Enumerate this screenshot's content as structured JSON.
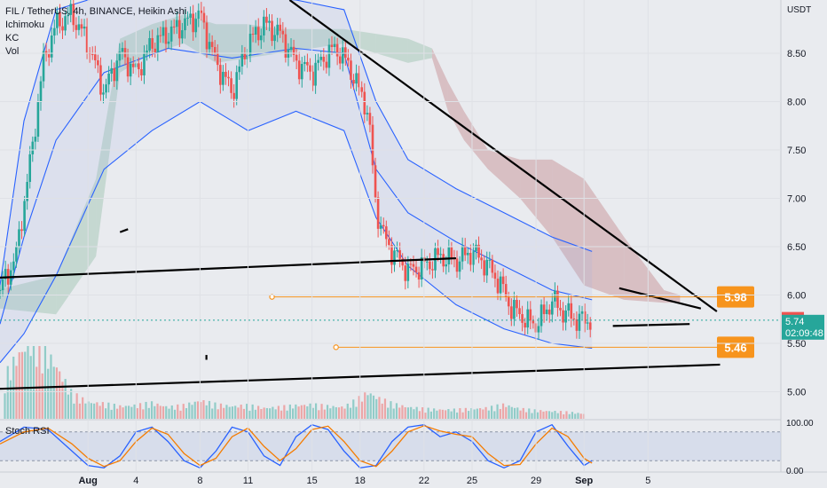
{
  "chart_data": [
    {
      "type": "candlestick",
      "title": "FIL / TetherUS, 4h, BINANCE, Heikin Ashi",
      "indicators": [
        "Ichimoku",
        "KC",
        "Vol"
      ],
      "currency": "USDT",
      "y_ticks": [
        5.0,
        5.5,
        6.0,
        6.5,
        7.0,
        7.5,
        8.0,
        8.5
      ],
      "y_tick_labels": [
        "5.00",
        "5.50",
        "6.00",
        "6.50",
        "7.00",
        "7.50",
        "8.00",
        "8.50"
      ],
      "x_tick_labels": [
        "Aug",
        "4",
        "8",
        "11",
        "15",
        "18",
        "22",
        "25",
        "29",
        "Sep",
        "5"
      ],
      "x_tick_day": [
        1,
        4,
        8,
        11,
        15,
        18,
        22,
        25,
        29,
        32,
        36
      ],
      "ylim": [
        4.72,
        9.05
      ],
      "xlim_day": [
        -4.5,
        44.3
      ],
      "price_path": [
        [
          -4.5,
          6.05
        ],
        [
          -3.5,
          6.4
        ],
        [
          -2.5,
          7.5
        ],
        [
          -1.8,
          8.4
        ],
        [
          -1.0,
          8.8
        ],
        [
          0.0,
          8.9
        ],
        [
          1.0,
          8.6
        ],
        [
          2.0,
          8.1
        ],
        [
          3.0,
          8.5
        ],
        [
          4.0,
          8.3
        ],
        [
          5.0,
          8.6
        ],
        [
          6.0,
          8.7
        ],
        [
          7.0,
          8.8
        ],
        [
          8.0,
          8.9
        ],
        [
          9.0,
          8.4
        ],
        [
          10.0,
          8.1
        ],
        [
          11.0,
          8.6
        ],
        [
          12.0,
          8.8
        ],
        [
          13.0,
          8.7
        ],
        [
          14.0,
          8.4
        ],
        [
          15.0,
          8.3
        ],
        [
          16.0,
          8.5
        ],
        [
          16.5,
          8.55
        ],
        [
          17.0,
          8.45
        ],
        [
          17.5,
          8.3
        ],
        [
          18.0,
          8.1
        ],
        [
          18.5,
          7.9
        ],
        [
          19.0,
          6.9
        ],
        [
          19.5,
          6.6
        ],
        [
          20.0,
          6.45
        ],
        [
          21.0,
          6.25
        ],
        [
          22.0,
          6.3
        ],
        [
          23.0,
          6.4
        ],
        [
          24.0,
          6.35
        ],
        [
          25.0,
          6.45
        ],
        [
          26.0,
          6.3
        ],
        [
          26.8,
          6.1
        ],
        [
          27.5,
          5.85
        ],
        [
          28.0,
          5.8
        ],
        [
          28.5,
          5.72
        ],
        [
          29.0,
          5.7
        ],
        [
          29.5,
          5.8
        ],
        [
          30.0,
          5.95
        ],
        [
          30.5,
          5.85
        ],
        [
          31.0,
          5.8
        ],
        [
          31.5,
          5.75
        ],
        [
          32.0,
          5.73
        ],
        [
          32.5,
          5.76
        ]
      ],
      "volume_day": [
        [
          -4.2,
          5.0
        ],
        [
          -3.6,
          7.0
        ],
        [
          -3.0,
          8.5
        ],
        [
          -2.4,
          9.5
        ],
        [
          -1.8,
          8.0
        ],
        [
          -1.2,
          7.0
        ],
        [
          -0.6,
          5.0
        ],
        [
          0.0,
          3.0
        ],
        [
          1.0,
          2.0
        ],
        [
          2.0,
          1.8
        ],
        [
          3.0,
          1.5
        ],
        [
          4.0,
          1.6
        ],
        [
          5.0,
          1.9
        ],
        [
          6.0,
          1.4
        ],
        [
          7.0,
          1.6
        ],
        [
          8.0,
          2.2
        ],
        [
          9.0,
          1.7
        ],
        [
          10.0,
          1.5
        ],
        [
          11.0,
          1.6
        ],
        [
          12.0,
          1.3
        ],
        [
          13.0,
          1.4
        ],
        [
          14.0,
          1.6
        ],
        [
          15.0,
          1.7
        ],
        [
          16.0,
          1.5
        ],
        [
          17.0,
          1.4
        ],
        [
          18.0,
          2.5
        ],
        [
          18.5,
          3.2
        ],
        [
          19.0,
          2.6
        ],
        [
          20.0,
          1.8
        ],
        [
          21.0,
          1.4
        ],
        [
          22.0,
          1.2
        ],
        [
          23.0,
          1.1
        ],
        [
          24.0,
          1.1
        ],
        [
          25.0,
          1.2
        ],
        [
          26.0,
          1.3
        ],
        [
          27.0,
          1.7
        ],
        [
          28.0,
          1.2
        ],
        [
          29.0,
          1.0
        ],
        [
          30.0,
          0.9
        ],
        [
          31.0,
          0.8
        ],
        [
          32.0,
          0.6
        ]
      ],
      "volume_scale": 10,
      "ichimoku_cloud_day": [
        [
          -4.5,
          5.86,
          6.06
        ],
        [
          -1.0,
          5.8,
          6.2
        ],
        [
          1.5,
          6.4,
          7.2
        ],
        [
          3.0,
          8.3,
          8.65
        ],
        [
          5.0,
          8.5,
          8.8
        ],
        [
          7.0,
          8.6,
          8.9
        ],
        [
          9.0,
          8.4,
          8.8
        ],
        [
          11.0,
          8.45,
          8.8
        ],
        [
          13.0,
          8.5,
          8.75
        ],
        [
          15.0,
          8.55,
          8.75
        ],
        [
          17.0,
          8.6,
          8.75
        ],
        [
          19.0,
          8.5,
          8.7
        ],
        [
          21.0,
          8.4,
          8.65
        ],
        [
          22.5,
          8.45,
          8.55
        ],
        [
          23.5,
          7.9,
          8.2
        ],
        [
          24.5,
          7.6,
          7.9
        ],
        [
          26.0,
          7.3,
          7.5
        ],
        [
          28.0,
          7.0,
          7.4
        ],
        [
          30.0,
          6.6,
          7.4
        ],
        [
          32.0,
          6.1,
          7.2
        ],
        [
          34.5,
          5.95,
          6.6
        ],
        [
          37.0,
          5.92,
          6.05
        ],
        [
          38.0,
          5.92,
          6.0
        ]
      ],
      "kc_upper_day": [
        [
          -4.5,
          6.1
        ],
        [
          -3.0,
          7.8
        ],
        [
          -1.0,
          8.95
        ],
        [
          2.0,
          9.1
        ],
        [
          6.0,
          9.1
        ],
        [
          10.0,
          9.1
        ],
        [
          14.0,
          9.05
        ],
        [
          17.0,
          8.95
        ],
        [
          19.0,
          8.0
        ],
        [
          21.0,
          7.4
        ],
        [
          24.0,
          7.1
        ],
        [
          27.0,
          6.85
        ],
        [
          30.0,
          6.6
        ],
        [
          32.5,
          6.45
        ]
      ],
      "kc_middle_day": [
        [
          -4.5,
          5.7
        ],
        [
          -3.0,
          6.6
        ],
        [
          -1.0,
          7.6
        ],
        [
          2.0,
          8.3
        ],
        [
          6.0,
          8.55
        ],
        [
          10.0,
          8.45
        ],
        [
          14.0,
          8.55
        ],
        [
          17.0,
          8.5
        ],
        [
          19.0,
          7.3
        ],
        [
          21.0,
          6.85
        ],
        [
          24.0,
          6.55
        ],
        [
          27.0,
          6.3
        ],
        [
          30.0,
          6.05
        ],
        [
          32.5,
          5.95
        ]
      ],
      "kc_lower_day": [
        [
          -4.5,
          5.3
        ],
        [
          -3.0,
          5.6
        ],
        [
          -1.0,
          6.2
        ],
        [
          2.0,
          7.3
        ],
        [
          5.0,
          7.7
        ],
        [
          8.0,
          8.0
        ],
        [
          11.0,
          7.7
        ],
        [
          14.0,
          7.9
        ],
        [
          17.0,
          7.7
        ],
        [
          19.0,
          6.8
        ],
        [
          21.0,
          6.3
        ],
        [
          24.0,
          5.9
        ],
        [
          27.0,
          5.65
        ],
        [
          30.0,
          5.5
        ],
        [
          32.5,
          5.45
        ]
      ],
      "trendlines_day": [
        [
          -4.5,
          6.18,
          24.0,
          6.38
        ],
        [
          -4.5,
          5.03,
          40.5,
          5.28
        ],
        [
          13.6,
          9.05,
          40.3,
          5.83
        ],
        [
          34.2,
          6.07,
          39.3,
          5.86
        ],
        [
          33.8,
          5.68,
          38.6,
          5.7
        ],
        [
          3.0,
          6.65,
          3.5,
          6.68
        ],
        [
          8.4,
          5.38,
          8.4,
          5.33
        ]
      ],
      "levels": [
        {
          "label": "5.98",
          "value": 5.98,
          "from_day": 12.5
        },
        {
          "label": "5.46",
          "value": 5.46,
          "from_day": 16.5
        }
      ],
      "price_labels": {
        "high_tag": "5.76",
        "last": "5.74",
        "countdown": "02:09:48"
      },
      "last_price": 5.74,
      "accent_colors": {
        "up": "#26a69a",
        "down": "#ef5350",
        "level": "#f7941d",
        "kc": "#2962ff",
        "cloud_red": "#c48a8e",
        "cloud_green": "#98c2ae"
      }
    },
    {
      "type": "line",
      "title": "Stoch RSI",
      "y_tick_labels": [
        "100.00",
        "0.00"
      ],
      "ylim": [
        0,
        100
      ],
      "k_day": [
        [
          -4.5,
          60
        ],
        [
          -3.0,
          90
        ],
        [
          -1.5,
          85
        ],
        [
          0.0,
          40
        ],
        [
          1.0,
          10
        ],
        [
          2.0,
          5
        ],
        [
          3.0,
          30
        ],
        [
          4.0,
          80
        ],
        [
          5.0,
          90
        ],
        [
          6.0,
          60
        ],
        [
          7.0,
          20
        ],
        [
          8.0,
          5
        ],
        [
          9.0,
          40
        ],
        [
          10.0,
          90
        ],
        [
          11.0,
          80
        ],
        [
          12.0,
          30
        ],
        [
          13.0,
          10
        ],
        [
          14.0,
          70
        ],
        [
          15.0,
          95
        ],
        [
          16.0,
          85
        ],
        [
          17.0,
          40
        ],
        [
          18.0,
          5
        ],
        [
          19.0,
          10
        ],
        [
          20.0,
          60
        ],
        [
          21.0,
          90
        ],
        [
          22.0,
          95
        ],
        [
          23.0,
          70
        ],
        [
          24.0,
          80
        ],
        [
          25.0,
          60
        ],
        [
          26.0,
          20
        ],
        [
          27.0,
          5
        ],
        [
          28.0,
          20
        ],
        [
          29.0,
          80
        ],
        [
          30.0,
          95
        ],
        [
          31.0,
          50
        ],
        [
          32.0,
          10
        ],
        [
          32.5,
          20
        ]
      ],
      "d_day": [
        [
          -4.5,
          55
        ],
        [
          -3.0,
          80
        ],
        [
          -1.5,
          88
        ],
        [
          0.0,
          55
        ],
        [
          1.0,
          25
        ],
        [
          2.0,
          8
        ],
        [
          3.0,
          20
        ],
        [
          4.0,
          60
        ],
        [
          5.0,
          88
        ],
        [
          6.0,
          75
        ],
        [
          7.0,
          35
        ],
        [
          8.0,
          10
        ],
        [
          9.0,
          25
        ],
        [
          10.0,
          70
        ],
        [
          11.0,
          88
        ],
        [
          12.0,
          50
        ],
        [
          13.0,
          20
        ],
        [
          14.0,
          45
        ],
        [
          15.0,
          85
        ],
        [
          16.0,
          92
        ],
        [
          17.0,
          60
        ],
        [
          18.0,
          20
        ],
        [
          19.0,
          8
        ],
        [
          20.0,
          40
        ],
        [
          21.0,
          80
        ],
        [
          22.0,
          93
        ],
        [
          23.0,
          82
        ],
        [
          24.0,
          75
        ],
        [
          25.0,
          70
        ],
        [
          26.0,
          35
        ],
        [
          27.0,
          10
        ],
        [
          28.0,
          12
        ],
        [
          29.0,
          55
        ],
        [
          30.0,
          88
        ],
        [
          31.0,
          70
        ],
        [
          32.0,
          25
        ],
        [
          32.5,
          15
        ]
      ]
    }
  ]
}
